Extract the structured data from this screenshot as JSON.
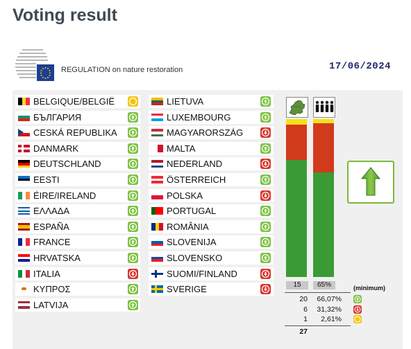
{
  "title": "Voting result",
  "regulation": "REGULATION on nature restoration",
  "date": "17/06/2024",
  "countries_left": [
    {
      "name": "BELGIQUE/BELGIË",
      "vote": "abs",
      "flag": [
        "#000000",
        "#fdda24",
        "#ef3340"
      ],
      "dir": "v"
    },
    {
      "name": "БЪЛГАРИЯ",
      "vote": "yes",
      "flag": [
        "#ffffff",
        "#00966e",
        "#d62612"
      ],
      "dir": "h"
    },
    {
      "name": "CESKÁ REPUBLIKA",
      "vote": "yes",
      "flag": [
        "#ffffff",
        "#d7141a"
      ],
      "dir": "h",
      "tri": "#11457e"
    },
    {
      "name": "DANMARK",
      "vote": "yes",
      "flag": [
        "#c8102e"
      ],
      "dir": "cross",
      "cross": "#ffffff"
    },
    {
      "name": "DEUTSCHLAND",
      "vote": "yes",
      "flag": [
        "#000000",
        "#dd0000",
        "#ffce00"
      ],
      "dir": "h"
    },
    {
      "name": "EESTI",
      "vote": "yes",
      "flag": [
        "#0072ce",
        "#000000",
        "#ffffff"
      ],
      "dir": "h"
    },
    {
      "name": "ÉIRE/IRELAND",
      "vote": "yes",
      "flag": [
        "#169b62",
        "#ffffff",
        "#ff883e"
      ],
      "dir": "v"
    },
    {
      "name": "ΕΛΛΑΔΑ",
      "vote": "yes",
      "flag": [
        "#0d5eaf",
        "#ffffff",
        "#0d5eaf",
        "#ffffff",
        "#0d5eaf"
      ],
      "dir": "h"
    },
    {
      "name": "ESPAÑA",
      "vote": "yes",
      "flag": [
        "#aa151b",
        "#f1bf00",
        "#f1bf00",
        "#aa151b"
      ],
      "dir": "h"
    },
    {
      "name": "FRANCE",
      "vote": "yes",
      "flag": [
        "#002395",
        "#ffffff",
        "#ed2939"
      ],
      "dir": "v"
    },
    {
      "name": "HRVATSKA",
      "vote": "yes",
      "flag": [
        "#ff0000",
        "#ffffff",
        "#171796"
      ],
      "dir": "h"
    },
    {
      "name": "ITALIA",
      "vote": "no",
      "flag": [
        "#009246",
        "#ffffff",
        "#ce2b37"
      ],
      "dir": "v"
    },
    {
      "name": "ΚΥΠΡΟΣ",
      "vote": "yes",
      "flag": [
        "#ffffff"
      ],
      "dir": "h",
      "dot": "#d57800"
    },
    {
      "name": "LATVIJA",
      "vote": "yes",
      "flag": [
        "#9e3039",
        "#ffffff",
        "#9e3039"
      ],
      "dir": "h"
    }
  ],
  "countries_right": [
    {
      "name": "LIETUVA",
      "vote": "yes",
      "flag": [
        "#fdb913",
        "#006a44",
        "#c1272d"
      ],
      "dir": "h"
    },
    {
      "name": "LUXEMBOURG",
      "vote": "yes",
      "flag": [
        "#ed2939",
        "#ffffff",
        "#00a1de"
      ],
      "dir": "h"
    },
    {
      "name": "MAGYARORSZÁG",
      "vote": "no",
      "flag": [
        "#cd2a3e",
        "#ffffff",
        "#436f4d"
      ],
      "dir": "h"
    },
    {
      "name": "MALTA",
      "vote": "yes",
      "flag": [
        "#ffffff",
        "#cf142b"
      ],
      "dir": "v"
    },
    {
      "name": "NEDERLAND",
      "vote": "no",
      "flag": [
        "#ae1c28",
        "#ffffff",
        "#21468b"
      ],
      "dir": "h"
    },
    {
      "name": "ÖSTERREICH",
      "vote": "yes",
      "flag": [
        "#ed2939",
        "#ffffff",
        "#ed2939"
      ],
      "dir": "h"
    },
    {
      "name": "POLSKA",
      "vote": "no",
      "flag": [
        "#ffffff",
        "#dc143c"
      ],
      "dir": "h"
    },
    {
      "name": "PORTUGAL",
      "vote": "yes",
      "flag": [
        "#006600",
        "#ff0000",
        "#ff0000"
      ],
      "dir": "v"
    },
    {
      "name": "ROMÂNIA",
      "vote": "yes",
      "flag": [
        "#002b7f",
        "#fcd116",
        "#ce1126"
      ],
      "dir": "v"
    },
    {
      "name": "SLOVENIJA",
      "vote": "yes",
      "flag": [
        "#ffffff",
        "#005da4",
        "#ed1c24"
      ],
      "dir": "h"
    },
    {
      "name": "SLOVENSKO",
      "vote": "yes",
      "flag": [
        "#ffffff",
        "#0b4ea2",
        "#ee1c25"
      ],
      "dir": "h"
    },
    {
      "name": "SUOMI/FINLAND",
      "vote": "no",
      "flag": [
        "#ffffff"
      ],
      "dir": "cross",
      "cross": "#003580"
    },
    {
      "name": "SVERIGE",
      "vote": "no",
      "flag": [
        "#006aa7"
      ],
      "dir": "cross",
      "cross": "#fecc00"
    }
  ],
  "bars": {
    "member_states": {
      "yes_pct": 74.07,
      "no_pct": 22.22,
      "abs_pct": 3.7
    },
    "population": {
      "yes_pct": 66.07,
      "no_pct": 31.32,
      "abs_pct": 2.61
    }
  },
  "bar_labels": {
    "count": "15",
    "population": "65%",
    "minimum": "(minimum)"
  },
  "totals": [
    {
      "count": "20",
      "pct": "66,07%",
      "vote": "yes"
    },
    {
      "count": "6",
      "pct": "31,32%",
      "vote": "no"
    },
    {
      "count": "1",
      "pct": "2,61%",
      "vote": "abs"
    }
  ],
  "total_count": "27",
  "icons": {
    "map": "eu-map-icon",
    "people": "population-icon",
    "arrow": "adopted-arrow-icon"
  },
  "colors": {
    "yes": "#3a9b35",
    "no": "#d23a1c",
    "abs": "#f5e11d",
    "title": "#3e4a55",
    "date": "#1f2a6b"
  }
}
